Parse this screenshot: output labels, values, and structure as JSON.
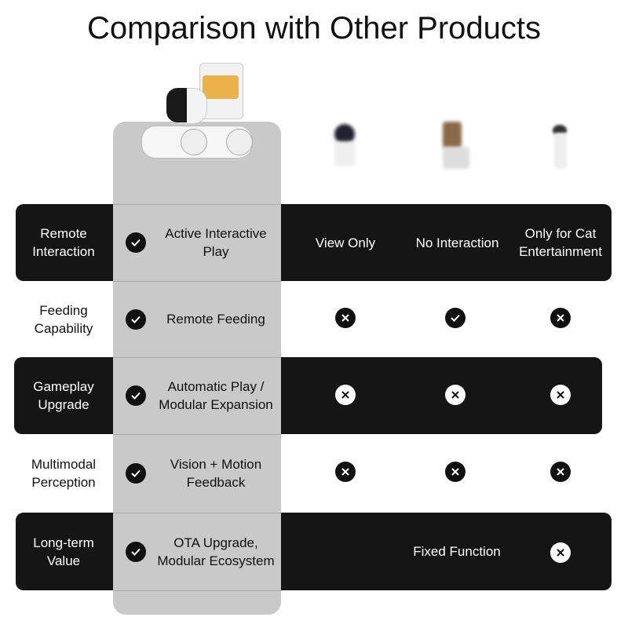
{
  "title": "Comparison with Other Products",
  "columns": [
    {
      "product": "robot-feeder",
      "icon": "robot-feeder-image"
    },
    {
      "product": "camera",
      "icon": "pet-camera-image"
    },
    {
      "product": "feeder",
      "icon": "pet-feeder-image"
    },
    {
      "product": "cat-toy",
      "icon": "cat-toy-image"
    }
  ],
  "rows": [
    {
      "label": "Remote Interaction",
      "featured": "Active Interactive Play",
      "c1": "View Only",
      "c2": "No Interaction",
      "c3": "Only for Cat Entertainment"
    },
    {
      "label": "Feeding Capability",
      "featured": "Remote Feeding",
      "c1": "x",
      "c2": "check",
      "c3": "x"
    },
    {
      "label": "Gameplay Upgrade",
      "featured": "Automatic Play / Modular Expansion",
      "c1": "x",
      "c2": "x",
      "c3": "x"
    },
    {
      "label": "Multimodal Perception",
      "featured": "Vision + Motion Feedback",
      "c1": "x",
      "c2": "x",
      "c3": "x"
    },
    {
      "label": "Long-term Value",
      "featured": "OTA Upgrade, Modular Ecosystem",
      "c12": "Fixed Function",
      "c3": "x"
    }
  ],
  "colors": {
    "dark_row": "#151515",
    "featured_column": "#c9c9c9"
  }
}
